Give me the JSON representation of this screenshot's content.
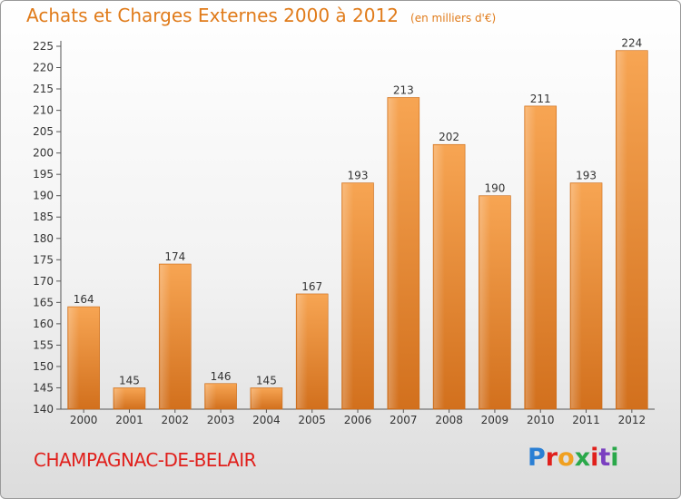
{
  "chart_data": {
    "type": "bar",
    "title": "Achats et Charges Externes 2000 à 2012",
    "subtitle": "(en milliers d'€)",
    "categories": [
      "2000",
      "2001",
      "2002",
      "2003",
      "2004",
      "2005",
      "2006",
      "2007",
      "2008",
      "2009",
      "2010",
      "2011",
      "2012"
    ],
    "values": [
      164,
      145,
      174,
      146,
      145,
      167,
      193,
      213,
      202,
      190,
      211,
      193,
      224
    ],
    "ylim": [
      140,
      225
    ],
    "yticks": [
      140,
      145,
      150,
      155,
      160,
      165,
      170,
      175,
      180,
      185,
      190,
      195,
      200,
      205,
      210,
      215,
      220,
      225
    ],
    "grid": false,
    "bar_color": "#f0923a"
  },
  "footer": {
    "commune": "CHAMPAGNAC-DE-BELAIR",
    "logo_text": "Proxiti",
    "logo_colors": [
      "#2a7fd4",
      "#e0201c",
      "#f0a020",
      "#2aa84a",
      "#e0201c",
      "#7a3fc0",
      "#2aa84a"
    ]
  }
}
